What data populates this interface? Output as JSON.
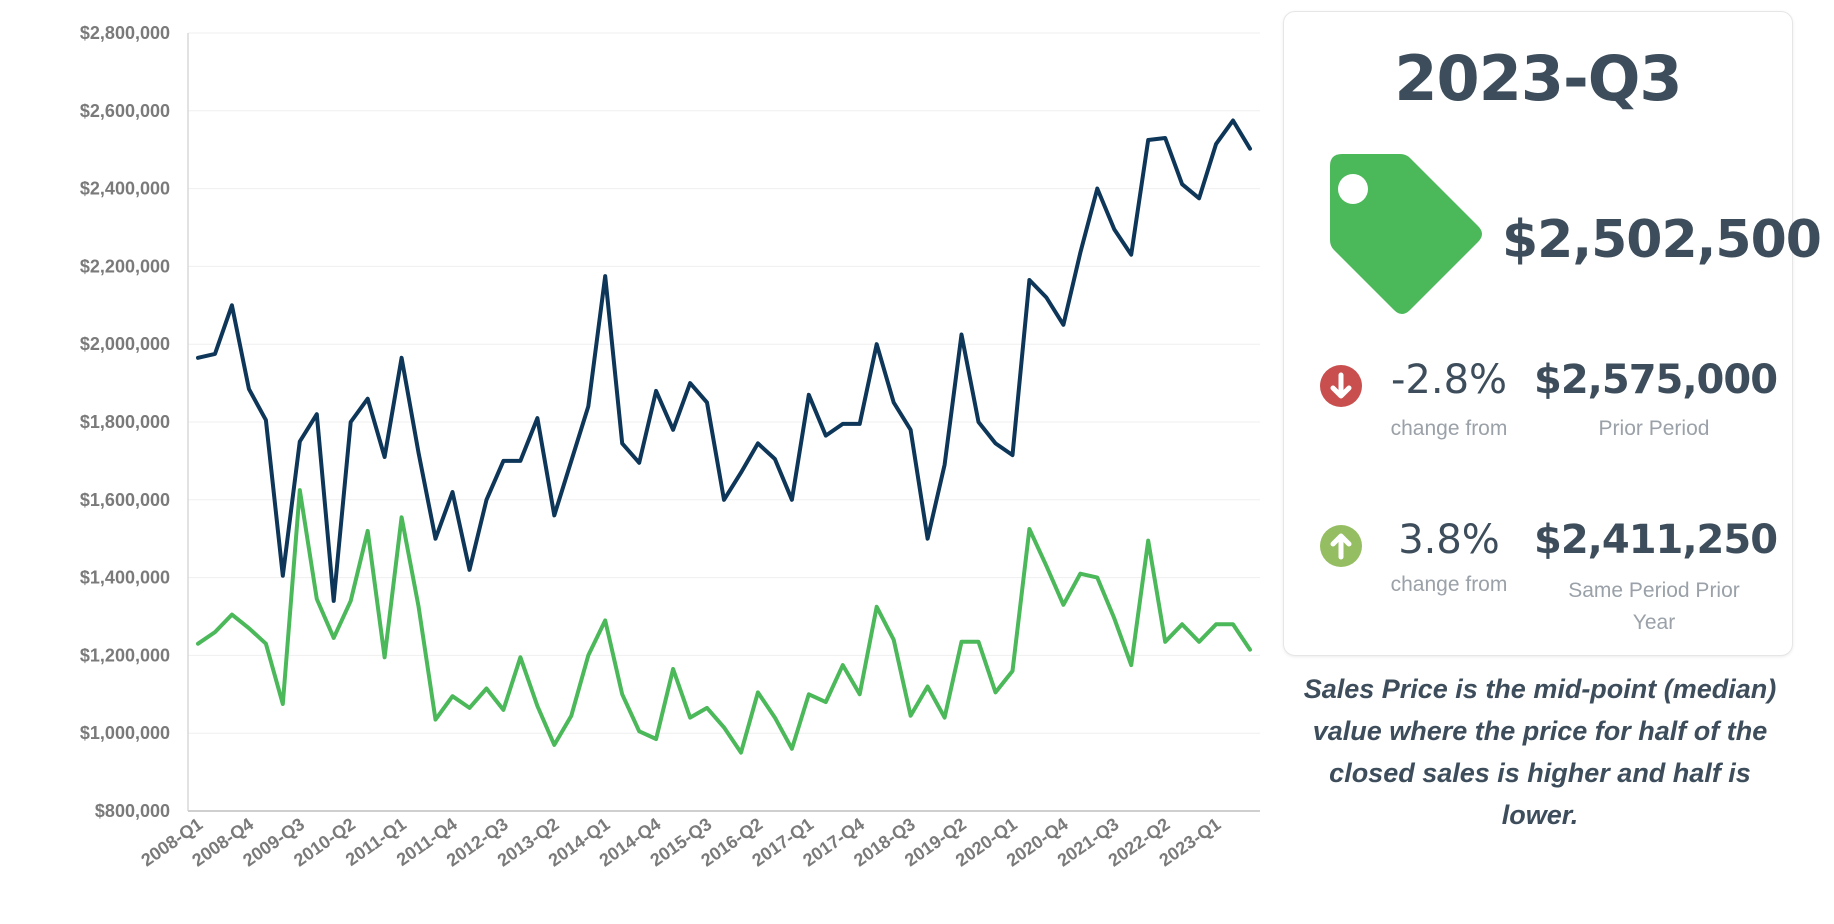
{
  "chart_data": {
    "type": "line",
    "title": "",
    "xlabel": "",
    "ylabel": "",
    "ylim": [
      800000,
      2800000
    ],
    "yticks": [
      "$800,000",
      "$1,000,000",
      "$1,200,000",
      "$1,400,000",
      "$1,600,000",
      "$1,800,000",
      "$2,000,000",
      "$2,200,000",
      "$2,400,000",
      "$2,600,000",
      "$2,800,000"
    ],
    "ytick_values": [
      800000,
      1000000,
      1200000,
      1400000,
      1600000,
      1800000,
      2000000,
      2200000,
      2400000,
      2600000,
      2800000
    ],
    "grid": true,
    "x": [
      "2008-Q1",
      "2008-Q2",
      "2008-Q3",
      "2008-Q4",
      "2009-Q1",
      "2009-Q2",
      "2009-Q3",
      "2009-Q4",
      "2010-Q1",
      "2010-Q2",
      "2010-Q3",
      "2010-Q4",
      "2011-Q1",
      "2011-Q2",
      "2011-Q3",
      "2011-Q4",
      "2012-Q1",
      "2012-Q2",
      "2012-Q3",
      "2012-Q4",
      "2013-Q1",
      "2013-Q2",
      "2013-Q3",
      "2013-Q4",
      "2014-Q1",
      "2014-Q2",
      "2014-Q3",
      "2014-Q4",
      "2015-Q1",
      "2015-Q2",
      "2015-Q3",
      "2015-Q4",
      "2016-Q1",
      "2016-Q2",
      "2016-Q3",
      "2016-Q4",
      "2017-Q1",
      "2017-Q2",
      "2017-Q3",
      "2017-Q4",
      "2018-Q1",
      "2018-Q2",
      "2018-Q3",
      "2018-Q4",
      "2019-Q1",
      "2019-Q2",
      "2019-Q3",
      "2019-Q4",
      "2020-Q1",
      "2020-Q2",
      "2020-Q3",
      "2020-Q4",
      "2021-Q1",
      "2021-Q2",
      "2021-Q3",
      "2021-Q4",
      "2022-Q1",
      "2022-Q2",
      "2022-Q3",
      "2022-Q4",
      "2023-Q1",
      "2023-Q2",
      "2023-Q3"
    ],
    "xtick_labels": [
      "2008-Q1",
      "2008-Q4",
      "2009-Q3",
      "2010-Q2",
      "2011-Q1",
      "2011-Q4",
      "2012-Q3",
      "2013-Q2",
      "2014-Q1",
      "2014-Q4",
      "2015-Q3",
      "2016-Q2",
      "2017-Q1",
      "2017-Q4",
      "2018-Q3",
      "2019-Q2",
      "2020-Q1",
      "2020-Q4",
      "2021-Q3",
      "2022-Q2",
      "2023-Q1"
    ],
    "series": [
      {
        "name": "series-1",
        "color": "#0d3659",
        "values": [
          1965000,
          1975000,
          2100000,
          1885000,
          1805000,
          1405000,
          1750000,
          1820000,
          1340000,
          1800000,
          1860000,
          1710000,
          1965000,
          1720000,
          1500000,
          1620000,
          1420000,
          1600000,
          1700000,
          1700000,
          1810000,
          1560000,
          1700000,
          1840000,
          2175000,
          1745000,
          1695000,
          1880000,
          1780000,
          1900000,
          1850000,
          1600000,
          1670000,
          1745000,
          1705000,
          1600000,
          1870000,
          1765000,
          1795000,
          1795000,
          2000000,
          1850000,
          1780000,
          1500000,
          1690000,
          2025000,
          1800000,
          1745000,
          1715000,
          2165000,
          2120000,
          2050000,
          2235000,
          2400000,
          2295000,
          2230000,
          2525000,
          2530000,
          2411250,
          2375000,
          2515000,
          2575000,
          2502500
        ]
      },
      {
        "name": "series-2",
        "color": "#4bb85a",
        "values": [
          1230000,
          1260000,
          1305000,
          1270000,
          1230000,
          1075000,
          1625000,
          1345000,
          1245000,
          1340000,
          1520000,
          1195000,
          1555000,
          1325000,
          1035000,
          1095000,
          1065000,
          1115000,
          1060000,
          1195000,
          1070000,
          970000,
          1045000,
          1200000,
          1290000,
          1100000,
          1005000,
          985000,
          1165000,
          1040000,
          1065000,
          1015000,
          950000,
          1105000,
          1040000,
          960000,
          1100000,
          1080000,
          1175000,
          1100000,
          1325000,
          1240000,
          1045000,
          1120000,
          1040000,
          1235000,
          1235000,
          1105000,
          1160000,
          1525000,
          1430000,
          1330000,
          1410000,
          1400000,
          1295000,
          1175000,
          1495000,
          1235000,
          1280000,
          1235000,
          1280000,
          1280000,
          1215000
        ]
      }
    ]
  },
  "card": {
    "period": "2023-Q3",
    "price": "$2,502,500",
    "prior": {
      "pct": "-2.8%",
      "change_label": "change from",
      "amount": "$2,575,000",
      "label": "Prior Period",
      "direction": "down",
      "color": "#c94f4f"
    },
    "prior_year": {
      "pct": "3.8%",
      "change_label": "change from",
      "amount": "$2,411,250",
      "label": "Same Period Prior Year",
      "direction": "up",
      "color": "#95bd62"
    },
    "tag_color": "#4bb85a"
  },
  "footnote": "Sales Price is the mid-point (median) value where the price for half of the closed sales is higher and half is lower."
}
